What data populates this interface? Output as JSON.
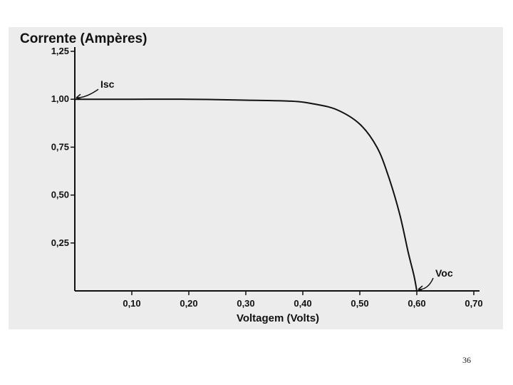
{
  "slide": {
    "number": "36"
  },
  "colors": {
    "background": "#ececec",
    "ink": "#111111"
  },
  "chart_data": {
    "type": "line",
    "ylabel": "Corrente (Ampères)",
    "xlabel": "Voltagem (Volts)",
    "xlim": [
      0,
      0.7
    ],
    "ylim": [
      0,
      1.25
    ],
    "x_ticks": [
      "0,10",
      "0,20",
      "0,30",
      "0,40",
      "0,50",
      "0,60",
      "0,70"
    ],
    "y_ticks": [
      "1,25",
      "1,00",
      "0,75",
      "0,50",
      "0,25"
    ],
    "grid": false,
    "series": [
      {
        "points": [
          [
            0.0,
            1.0
          ],
          [
            0.1,
            1.0
          ],
          [
            0.2,
            1.0
          ],
          [
            0.3,
            0.995
          ],
          [
            0.38,
            0.99
          ],
          [
            0.42,
            0.975
          ],
          [
            0.46,
            0.945
          ],
          [
            0.5,
            0.87
          ],
          [
            0.53,
            0.75
          ],
          [
            0.55,
            0.6
          ],
          [
            0.57,
            0.4
          ],
          [
            0.585,
            0.2
          ],
          [
            0.595,
            0.08
          ],
          [
            0.6,
            0.0
          ]
        ]
      }
    ],
    "annotations": [
      {
        "label": "Isc",
        "x": 0.0,
        "y": 1.0
      },
      {
        "label": "Voc",
        "x": 0.6,
        "y": 0.0
      }
    ]
  }
}
